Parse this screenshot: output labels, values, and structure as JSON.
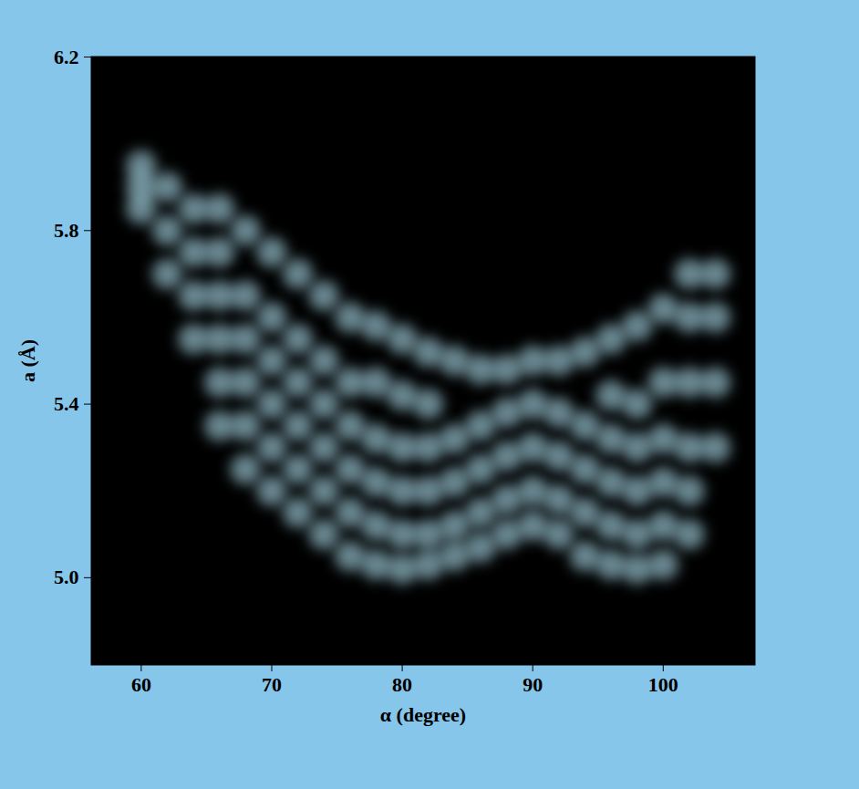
{
  "chart_data": {
    "type": "scatter",
    "xlabel": "α (degree)",
    "ylabel": "a (Å)",
    "color": "#b4e6f7",
    "xlim": [
      56.2,
      107
    ],
    "ylim": [
      4.8,
      6.2
    ],
    "xticks": [
      60,
      70,
      80,
      90,
      100
    ],
    "yticks": [
      {
        "value": 5.0,
        "label": "5.0"
      },
      5.4,
      5.8,
      6.2
    ],
    "x": [
      60,
      60,
      60,
      62,
      62,
      62,
      64,
      64,
      64,
      64,
      66,
      66,
      66,
      66,
      66,
      66,
      68,
      68,
      68,
      68,
      68,
      68,
      70,
      70,
      70,
      70,
      70,
      70,
      72,
      72,
      72,
      72,
      72,
      72,
      74,
      74,
      74,
      74,
      74,
      74,
      76,
      76,
      76,
      76,
      76,
      76,
      78,
      78,
      78,
      78,
      78,
      78,
      80,
      80,
      80,
      80,
      80,
      80,
      82,
      82,
      82,
      82,
      82,
      82,
      84,
      84,
      84,
      84,
      84,
      86,
      86,
      86,
      86,
      86,
      88,
      88,
      88,
      88,
      88,
      90,
      90,
      90,
      90,
      90,
      92,
      92,
      92,
      92,
      92,
      94,
      94,
      94,
      94,
      94,
      96,
      96,
      96,
      96,
      96,
      96,
      98,
      98,
      98,
      98,
      98,
      98,
      100,
      100,
      100,
      100,
      100,
      100,
      102,
      102,
      102,
      102,
      102,
      102,
      104,
      104,
      104,
      104
    ],
    "y": [
      5.85,
      5.9,
      5.95,
      5.7,
      5.8,
      5.9,
      5.55,
      5.65,
      5.75,
      5.85,
      5.35,
      5.45,
      5.55,
      5.65,
      5.75,
      5.85,
      5.25,
      5.35,
      5.45,
      5.55,
      5.65,
      5.8,
      5.2,
      5.3,
      5.4,
      5.5,
      5.6,
      5.75,
      5.15,
      5.25,
      5.35,
      5.45,
      5.55,
      5.7,
      5.1,
      5.2,
      5.3,
      5.4,
      5.5,
      5.65,
      5.05,
      5.15,
      5.25,
      5.35,
      5.45,
      5.6,
      5.03,
      5.12,
      5.22,
      5.32,
      5.45,
      5.58,
      5.02,
      5.1,
      5.2,
      5.3,
      5.42,
      5.55,
      5.03,
      5.1,
      5.2,
      5.3,
      5.4,
      5.52,
      5.05,
      5.12,
      5.22,
      5.32,
      5.5,
      5.07,
      5.15,
      5.25,
      5.35,
      5.48,
      5.1,
      5.18,
      5.28,
      5.38,
      5.48,
      5.12,
      5.2,
      5.3,
      5.4,
      5.5,
      5.1,
      5.18,
      5.28,
      5.38,
      5.5,
      5.05,
      5.15,
      5.25,
      5.35,
      5.52,
      5.03,
      5.12,
      5.22,
      5.32,
      5.42,
      5.55,
      5.02,
      5.1,
      5.2,
      5.3,
      5.4,
      5.58,
      5.03,
      5.12,
      5.22,
      5.32,
      5.45,
      5.62,
      5.1,
      5.2,
      5.3,
      5.45,
      5.6,
      5.7,
      5.3,
      5.45,
      5.6,
      5.7
    ]
  }
}
